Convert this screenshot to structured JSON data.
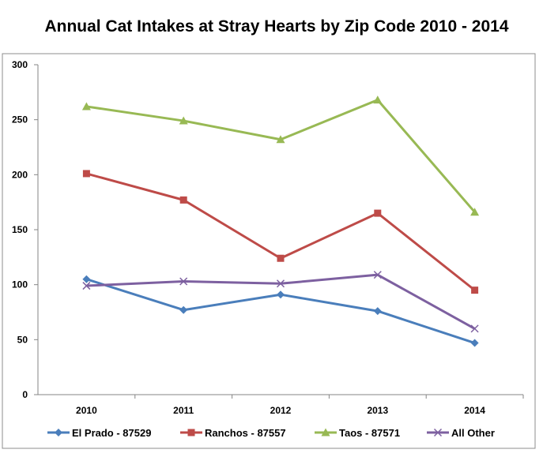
{
  "chart_data": {
    "type": "line",
    "title": "Annual Cat Intakes at Stray Hearts by Zip Code 2010 - 2014",
    "xlabel": "",
    "ylabel": "",
    "categories": [
      "2010",
      "2011",
      "2012",
      "2013",
      "2014"
    ],
    "ylim": [
      0,
      300
    ],
    "yticks": [
      0,
      50,
      100,
      150,
      200,
      250,
      300
    ],
    "grid": false,
    "legend_position": "bottom",
    "series": [
      {
        "name": "El Prado - 87529",
        "values": [
          105,
          77,
          91,
          76,
          47
        ],
        "color": "#4A7EBB",
        "marker": "diamond"
      },
      {
        "name": "Ranchos - 87557",
        "values": [
          201,
          177,
          124,
          165,
          95
        ],
        "color": "#BE4B48",
        "marker": "square"
      },
      {
        "name": "Taos - 87571",
        "values": [
          262,
          249,
          232,
          268,
          166
        ],
        "color": "#98B954",
        "marker": "triangle"
      },
      {
        "name": "All Other",
        "values": [
          99,
          103,
          101,
          109,
          60
        ],
        "color": "#7D60A0",
        "marker": "x"
      }
    ]
  }
}
